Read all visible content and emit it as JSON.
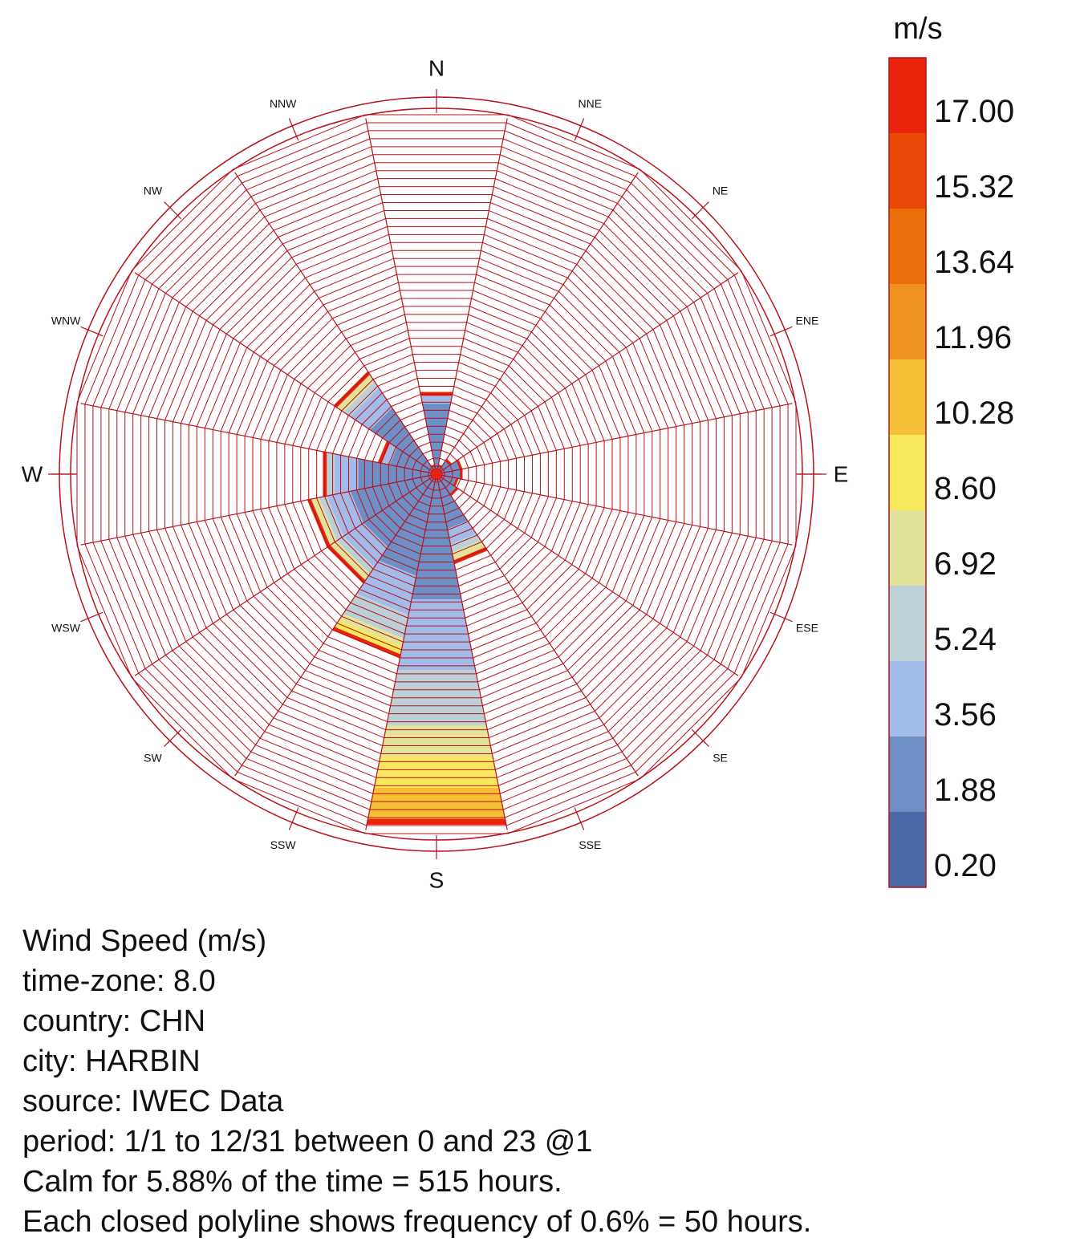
{
  "chart_data": {
    "type": "wind-rose",
    "directions": [
      "N",
      "NNE",
      "NE",
      "ENE",
      "E",
      "ESE",
      "SE",
      "SSE",
      "S",
      "SSW",
      "SW",
      "WSW",
      "W",
      "WNW",
      "NW",
      "NNW"
    ],
    "cardinal_labels": [
      "N",
      "E",
      "S",
      "W"
    ],
    "ring_step_percent": 0.6,
    "max_percent": 27,
    "colorbar": {
      "unit": "m/s",
      "ticks": [
        "17.00",
        "15.32",
        "13.64",
        "11.96",
        "10.28",
        "8.60",
        "6.92",
        "5.24",
        "3.56",
        "1.88",
        "0.20"
      ],
      "colors": [
        "#e8250a",
        "#e94a08",
        "#ea6f0a",
        "#ef9220",
        "#f5c036",
        "#f8e95c",
        "#e2e39a",
        "#bcd0d8",
        "#a3bbe9",
        "#6d8fc6",
        "#4a69a8"
      ]
    },
    "series": [
      {
        "direction": "N",
        "bins": [
          {
            "speed_bin": 1,
            "percent": 5.4
          },
          {
            "speed_bin": 2,
            "percent": 0.6
          },
          {
            "speed_bin": 10,
            "percent": 0.3
          }
        ]
      },
      {
        "direction": "NNE",
        "bins": [
          {
            "speed_bin": 1,
            "percent": 0.6
          },
          {
            "speed_bin": 10,
            "percent": 0.15
          }
        ]
      },
      {
        "direction": "NE",
        "bins": [
          {
            "speed_bin": 1,
            "percent": 1.2
          },
          {
            "speed_bin": 10,
            "percent": 0.2
          }
        ]
      },
      {
        "direction": "ENE",
        "bins": [
          {
            "speed_bin": 1,
            "percent": 1.8
          },
          {
            "speed_bin": 10,
            "percent": 0.2
          }
        ]
      },
      {
        "direction": "E",
        "bins": [
          {
            "speed_bin": 1,
            "percent": 1.8
          },
          {
            "speed_bin": 10,
            "percent": 0.2
          }
        ]
      },
      {
        "direction": "ESE",
        "bins": [
          {
            "speed_bin": 1,
            "percent": 1.5
          },
          {
            "speed_bin": 10,
            "percent": 0.2
          }
        ]
      },
      {
        "direction": "SE",
        "bins": [
          {
            "speed_bin": 1,
            "percent": 1.8
          },
          {
            "speed_bin": 10,
            "percent": 0.2
          }
        ]
      },
      {
        "direction": "SSE",
        "bins": [
          {
            "speed_bin": 1,
            "percent": 4.2
          },
          {
            "speed_bin": 2,
            "percent": 1.2
          },
          {
            "speed_bin": 3,
            "percent": 0.6
          },
          {
            "speed_bin": 4,
            "percent": 0.6
          },
          {
            "speed_bin": 10,
            "percent": 0.3
          }
        ]
      },
      {
        "direction": "S",
        "bins": [
          {
            "speed_bin": 1,
            "percent": 9.6
          },
          {
            "speed_bin": 2,
            "percent": 5.4
          },
          {
            "speed_bin": 3,
            "percent": 4.2
          },
          {
            "speed_bin": 4,
            "percent": 2.4
          },
          {
            "speed_bin": 5,
            "percent": 2.4
          },
          {
            "speed_bin": 6,
            "percent": 2.4
          },
          {
            "speed_bin": 10,
            "percent": 0.45
          }
        ]
      },
      {
        "direction": "SSW",
        "bins": [
          {
            "speed_bin": 1,
            "percent": 7.8
          },
          {
            "speed_bin": 2,
            "percent": 3.0
          },
          {
            "speed_bin": 3,
            "percent": 1.8
          },
          {
            "speed_bin": 4,
            "percent": 0.6
          },
          {
            "speed_bin": 5,
            "percent": 0.6
          },
          {
            "speed_bin": 10,
            "percent": 0.3
          }
        ]
      },
      {
        "direction": "SW",
        "bins": [
          {
            "speed_bin": 1,
            "percent": 6.6
          },
          {
            "speed_bin": 2,
            "percent": 1.8
          },
          {
            "speed_bin": 3,
            "percent": 0.6
          },
          {
            "speed_bin": 4,
            "percent": 0.6
          },
          {
            "speed_bin": 10,
            "percent": 0.3
          }
        ]
      },
      {
        "direction": "WSW",
        "bins": [
          {
            "speed_bin": 1,
            "percent": 6.6
          },
          {
            "speed_bin": 2,
            "percent": 1.8
          },
          {
            "speed_bin": 3,
            "percent": 0.6
          },
          {
            "speed_bin": 4,
            "percent": 0.6
          },
          {
            "speed_bin": 10,
            "percent": 0.3
          }
        ]
      },
      {
        "direction": "W",
        "bins": [
          {
            "speed_bin": 1,
            "percent": 6.0
          },
          {
            "speed_bin": 2,
            "percent": 1.8
          },
          {
            "speed_bin": 3,
            "percent": 0.6
          },
          {
            "speed_bin": 10,
            "percent": 0.3
          }
        ]
      },
      {
        "direction": "WNW",
        "bins": [
          {
            "speed_bin": 1,
            "percent": 3.6
          },
          {
            "speed_bin": 2,
            "percent": 0.6
          },
          {
            "speed_bin": 10,
            "percent": 0.3
          }
        ]
      },
      {
        "direction": "NW",
        "bins": [
          {
            "speed_bin": 1,
            "percent": 6.0
          },
          {
            "speed_bin": 2,
            "percent": 1.8
          },
          {
            "speed_bin": 3,
            "percent": 0.6
          },
          {
            "speed_bin": 4,
            "percent": 0.6
          },
          {
            "speed_bin": 10,
            "percent": 0.3
          }
        ]
      },
      {
        "direction": "NNW",
        "bins": [
          {
            "speed_bin": 1,
            "percent": 0.6
          },
          {
            "speed_bin": 10,
            "percent": 0.15
          }
        ]
      }
    ]
  },
  "info_lines": [
    "Wind Speed (m/s)",
    "time-zone: 8.0",
    "country: CHN",
    "city: HARBIN",
    "source: IWEC Data",
    "period: 1/1 to 12/31 between 0 and 23 @1",
    "Calm for 5.88% of the time = 515 hours.",
    "Each closed polyline shows frequency of 0.6% = 50 hours."
  ],
  "colors": {
    "grid": "#b8121c",
    "text": "#111111"
  }
}
